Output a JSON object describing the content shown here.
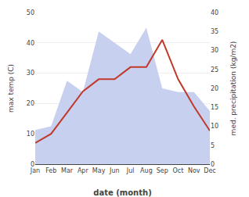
{
  "chart_data": {
    "type": "line",
    "categories": [
      "Jan",
      "Feb",
      "Mar",
      "Apr",
      "May",
      "Jun",
      "Jul",
      "Aug",
      "Sep",
      "Oct",
      "Nov",
      "Dec"
    ],
    "series": [
      {
        "type": "area",
        "color": "#c8d0f0",
        "axis": "y2",
        "values": [
          9,
          10,
          22,
          19,
          35,
          32,
          29,
          36,
          20,
          19,
          19,
          14
        ]
      },
      {
        "type": "line",
        "color": "#c0392b",
        "values": [
          7,
          10,
          17,
          24,
          28,
          28,
          32,
          32,
          41,
          28,
          19,
          11
        ]
      }
    ],
    "xlabel": "date (month)",
    "ylabel": "max temp (C)",
    "y2label": "med. precipitation (kg/m2)",
    "ylim": [
      0,
      50
    ],
    "yticks": [
      0,
      10,
      20,
      30,
      40,
      50
    ],
    "y2lim": [
      0,
      40
    ],
    "y2ticks": [
      0,
      5,
      10,
      15,
      20,
      25,
      30,
      35,
      40
    ],
    "grid": true
  }
}
